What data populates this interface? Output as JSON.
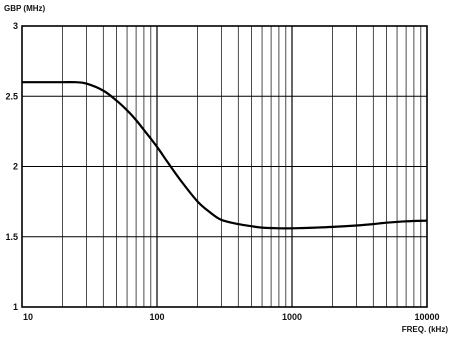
{
  "chart_data": {
    "type": "line",
    "xscale": "log",
    "xlim": [
      10,
      10000
    ],
    "ylim": [
      1,
      3
    ],
    "ylabel": "GBP (MHz)",
    "xlabel": "FREQ. (kHz)",
    "grid": true,
    "x_ticks": [
      {
        "value": 10,
        "label": "10"
      },
      {
        "value": 100,
        "label": "100"
      },
      {
        "value": 1000,
        "label": "1000"
      },
      {
        "value": 10000,
        "label": "10000"
      }
    ],
    "y_ticks": [
      {
        "value": 1,
        "label": "1"
      },
      {
        "value": 1.5,
        "label": "1.5"
      },
      {
        "value": 2,
        "label": "2"
      },
      {
        "value": 2.5,
        "label": "2.5"
      },
      {
        "value": 3,
        "label": "3"
      }
    ],
    "series": [
      {
        "color": "#000000",
        "x": [
          10,
          15,
          20,
          25,
          30,
          40,
          50,
          60,
          70,
          80,
          100,
          120,
          150,
          200,
          250,
          300,
          400,
          500,
          600,
          800,
          1000,
          1500,
          2000,
          3000,
          4000,
          5000,
          7000,
          10000
        ],
        "y": [
          2.6,
          2.6,
          2.6,
          2.6,
          2.59,
          2.54,
          2.47,
          2.4,
          2.33,
          2.26,
          2.14,
          2.03,
          1.9,
          1.75,
          1.67,
          1.62,
          1.59,
          1.575,
          1.565,
          1.56,
          1.56,
          1.565,
          1.57,
          1.58,
          1.59,
          1.6,
          1.61,
          1.615
        ]
      }
    ]
  }
}
